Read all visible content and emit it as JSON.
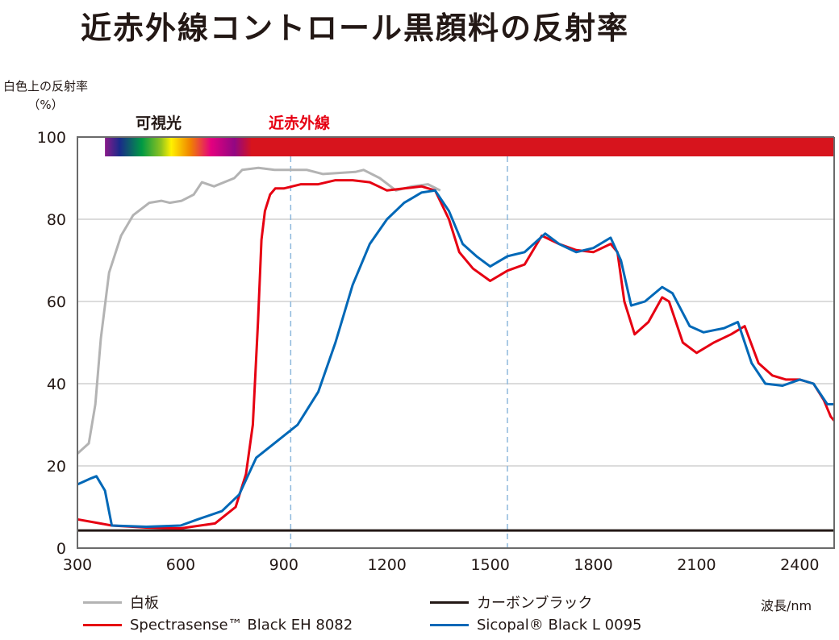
{
  "chart_data": {
    "type": "line",
    "title": "近赤外線コントロール黒顔料の反射率",
    "ylabel": "白色上の反射率",
    "ylabel_unit": "（%）",
    "xlabel": "波長/nm",
    "xlim": [
      300,
      2500
    ],
    "ylim": [
      0,
      100
    ],
    "xticks": [
      300,
      600,
      900,
      1200,
      1500,
      1800,
      2100,
      2400
    ],
    "yticks": [
      0,
      20,
      40,
      60,
      80,
      100
    ],
    "grid": "horizontal",
    "legend_position": "bottom",
    "reference_lines_x": [
      920,
      1550
    ],
    "bands": [
      {
        "label": "可視光",
        "range": [
          380,
          780
        ],
        "color": "#231815"
      },
      {
        "label": "近赤外線",
        "range": [
          780,
          2500
        ],
        "color": "#e60012"
      }
    ],
    "series": [
      {
        "name": "白板",
        "color": "#b3b3b3",
        "x": [
          300,
          333,
          352,
          368,
          392,
          427,
          462,
          509,
          544,
          568,
          603,
          638,
          662,
          697,
          756,
          779,
          826,
          873,
          967,
          1014,
          1108,
          1132,
          1179,
          1226,
          1273,
          1319,
          1355
        ],
        "y": [
          23,
          25.5,
          35,
          51,
          67,
          76,
          81,
          84,
          84.5,
          84,
          84.5,
          86,
          89,
          88,
          90,
          92,
          92.5,
          92,
          92,
          91,
          91.5,
          92,
          90,
          87,
          88,
          88.5,
          87
        ]
      },
      {
        "name": "カーボンブラック",
        "color": "#231815",
        "x": [
          300,
          2500
        ],
        "y": [
          4.3,
          4.3
        ]
      },
      {
        "name": "Spectrasense™ Black EH 8082",
        "color": "#e60012",
        "x": [
          300,
          400,
          500,
          600,
          700,
          760,
          790,
          810,
          825,
          835,
          845,
          860,
          875,
          900,
          950,
          1000,
          1050,
          1100,
          1150,
          1175,
          1200,
          1250,
          1300,
          1340,
          1380,
          1410,
          1450,
          1500,
          1550,
          1600,
          1650,
          1700,
          1750,
          1800,
          1850,
          1870,
          1890,
          1920,
          1960,
          2000,
          2020,
          2060,
          2100,
          2150,
          2200,
          2240,
          2280,
          2320,
          2360,
          2400,
          2440,
          2470,
          2490,
          2500
        ],
        "y": [
          7,
          5.5,
          5,
          4.8,
          6,
          10,
          18,
          30,
          55,
          75,
          82,
          86,
          87.5,
          87.5,
          88.5,
          88.5,
          89.5,
          89.5,
          89,
          88,
          87,
          87.5,
          88,
          87,
          80,
          72,
          68,
          65,
          67.5,
          69,
          76,
          74,
          72.5,
          72,
          74,
          72,
          60,
          52,
          55,
          61,
          60,
          50,
          47.5,
          50,
          52,
          54,
          45,
          42,
          41,
          41,
          40,
          36,
          32,
          31
        ]
      },
      {
        "name": "Sicopal® Black L 0095",
        "color": "#0068b7",
        "x": [
          300,
          340,
          355,
          380,
          400,
          500,
          600,
          650,
          720,
          770,
          820,
          880,
          940,
          1000,
          1050,
          1100,
          1150,
          1200,
          1250,
          1300,
          1340,
          1380,
          1420,
          1460,
          1500,
          1550,
          1600,
          1660,
          1700,
          1750,
          1800,
          1850,
          1880,
          1910,
          1950,
          2000,
          2030,
          2080,
          2120,
          2180,
          2220,
          2260,
          2300,
          2350,
          2400,
          2440,
          2480,
          2500
        ],
        "y": [
          15.5,
          17,
          17.5,
          14,
          5.5,
          5.2,
          5.5,
          7,
          9,
          13,
          22,
          26,
          30,
          38,
          50,
          64,
          74,
          80,
          84,
          86.5,
          87,
          82,
          74,
          71,
          68.5,
          71,
          72,
          76.5,
          74,
          72,
          73,
          75.5,
          70,
          59,
          60,
          63.5,
          62,
          54,
          52.5,
          53.5,
          55,
          45,
          40,
          39.5,
          41,
          40,
          35,
          35
        ]
      }
    ]
  }
}
